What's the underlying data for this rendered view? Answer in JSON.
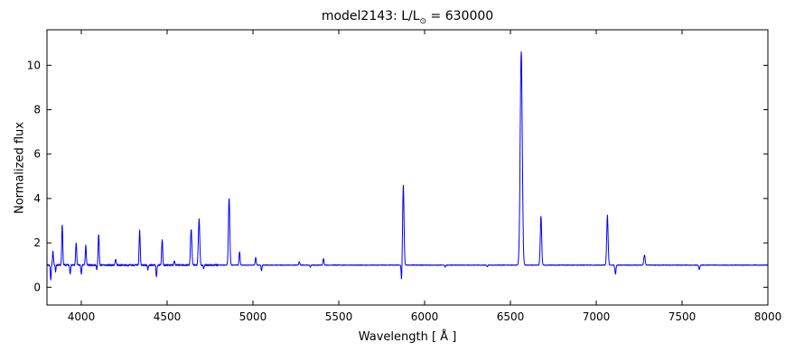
{
  "chart_data": {
    "type": "line",
    "title": "model2143: L/L⊙ = 630000",
    "title_parts": {
      "main": "model2143: L/L",
      "sub": "⊙",
      "tail": " = 630000"
    },
    "xlabel": "Wavelength [ Å ]",
    "ylabel": "Normalized flux",
    "xlim": [
      3800,
      8000
    ],
    "ylim": [
      -0.8,
      11.6
    ],
    "xticks": [
      4000,
      4500,
      5000,
      5500,
      6000,
      6500,
      7000,
      7500,
      8000
    ],
    "yticks": [
      0,
      2,
      4,
      6,
      8,
      10
    ],
    "grid": false,
    "line_color": "#0000ff",
    "frame_color": "#000000",
    "continuum": 1.0,
    "emission_lines": [
      {
        "wavelength": 3835,
        "peak": 1.6,
        "sigma": 3
      },
      {
        "wavelength": 3889,
        "peak": 2.8,
        "sigma": 3
      },
      {
        "wavelength": 3970,
        "peak": 2.0,
        "sigma": 3
      },
      {
        "wavelength": 4026,
        "peak": 1.9,
        "sigma": 3
      },
      {
        "wavelength": 4101,
        "peak": 2.4,
        "sigma": 3
      },
      {
        "wavelength": 4200,
        "peak": 1.25,
        "sigma": 3
      },
      {
        "wavelength": 4340,
        "peak": 2.55,
        "sigma": 3
      },
      {
        "wavelength": 4471,
        "peak": 2.15,
        "sigma": 3
      },
      {
        "wavelength": 4542,
        "peak": 1.2,
        "sigma": 3
      },
      {
        "wavelength": 4640,
        "peak": 2.6,
        "sigma": 4
      },
      {
        "wavelength": 4686,
        "peak": 3.1,
        "sigma": 4
      },
      {
        "wavelength": 4861,
        "peak": 4.0,
        "sigma": 4
      },
      {
        "wavelength": 4922,
        "peak": 1.6,
        "sigma": 3
      },
      {
        "wavelength": 5016,
        "peak": 1.35,
        "sigma": 3
      },
      {
        "wavelength": 5270,
        "peak": 1.15,
        "sigma": 3
      },
      {
        "wavelength": 5411,
        "peak": 1.3,
        "sigma": 3
      },
      {
        "wavelength": 5876,
        "peak": 4.6,
        "sigma": 4
      },
      {
        "wavelength": 6563,
        "peak": 10.6,
        "sigma": 6
      },
      {
        "wavelength": 6678,
        "peak": 3.2,
        "sigma": 4
      },
      {
        "wavelength": 7065,
        "peak": 3.25,
        "sigma": 4
      },
      {
        "wavelength": 7281,
        "peak": 1.45,
        "sigma": 4
      }
    ],
    "absorption_dips": [
      {
        "wavelength": 3822,
        "floor": 0.35,
        "sigma": 2.5
      },
      {
        "wavelength": 3850,
        "floor": 0.7,
        "sigma": 2.0
      },
      {
        "wavelength": 3935,
        "floor": 0.6,
        "sigma": 2.5
      },
      {
        "wavelength": 4000,
        "floor": 0.6,
        "sigma": 2.5
      },
      {
        "wavelength": 4090,
        "floor": 0.8,
        "sigma": 2.0
      },
      {
        "wavelength": 4388,
        "floor": 0.8,
        "sigma": 2.5
      },
      {
        "wavelength": 4438,
        "floor": 0.45,
        "sigma": 2.5
      },
      {
        "wavelength": 4713,
        "floor": 0.85,
        "sigma": 2.5
      },
      {
        "wavelength": 5050,
        "floor": 0.75,
        "sigma": 2.5
      },
      {
        "wavelength": 5334,
        "floor": 0.9,
        "sigma": 2.5
      },
      {
        "wavelength": 5866,
        "floor": 0.25,
        "sigma": 2.5
      },
      {
        "wavelength": 6120,
        "floor": 0.92,
        "sigma": 2.5
      },
      {
        "wavelength": 6365,
        "floor": 0.92,
        "sigma": 2.5
      },
      {
        "wavelength": 7112,
        "floor": 0.6,
        "sigma": 3.0
      },
      {
        "wavelength": 7600,
        "floor": 0.8,
        "sigma": 3.0
      }
    ]
  }
}
